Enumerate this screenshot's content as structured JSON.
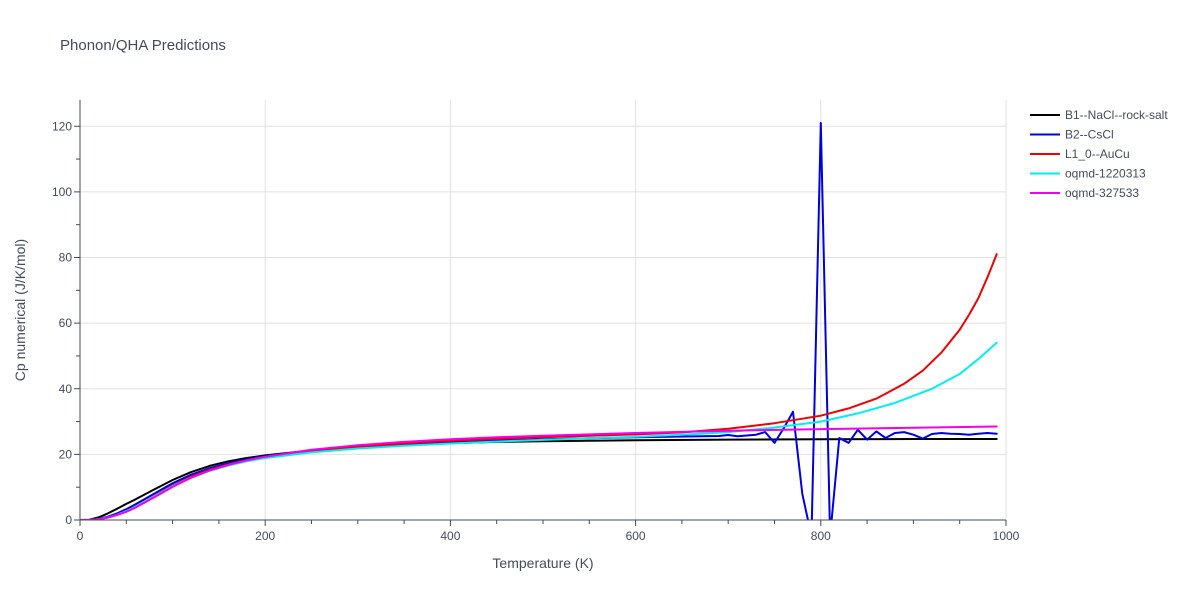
{
  "chart_data": {
    "type": "line",
    "title": "Phonon/QHA Predictions",
    "xlabel": "Temperature (K)",
    "ylabel": "Cp numerical (J/K/mol)",
    "xlim": [
      0,
      1000
    ],
    "ylim": [
      0,
      128
    ],
    "xticks": [
      0,
      200,
      400,
      600,
      800,
      1000
    ],
    "yticks": [
      0,
      20,
      40,
      60,
      80,
      100,
      120
    ],
    "grid": true,
    "legend_position": "top-right",
    "series": [
      {
        "name": "B1--NaCl--rock-salt",
        "color": "#000000",
        "x": [
          0,
          10,
          20,
          30,
          40,
          50,
          60,
          80,
          100,
          120,
          140,
          160,
          180,
          200,
          250,
          300,
          350,
          400,
          450,
          500,
          600,
          700,
          800,
          900,
          990
        ],
        "y": [
          0,
          0.1,
          0.8,
          2.0,
          3.4,
          4.9,
          6.3,
          9.3,
          12.2,
          14.6,
          16.5,
          17.9,
          18.9,
          19.7,
          21.2,
          22.2,
          22.9,
          23.4,
          23.8,
          24.0,
          24.3,
          24.5,
          24.6,
          24.7,
          24.7
        ]
      },
      {
        "name": "B2--CsCl",
        "color": "#0000dd",
        "x": [
          0,
          10,
          20,
          30,
          40,
          50,
          60,
          80,
          100,
          120,
          140,
          160,
          180,
          200,
          250,
          300,
          350,
          400,
          450,
          500,
          600,
          690,
          700,
          710,
          730,
          740,
          750,
          760,
          770,
          780,
          790,
          800,
          810,
          820,
          830,
          840,
          850,
          860,
          870,
          880,
          890,
          900,
          910,
          920,
          930,
          940,
          950,
          960,
          970,
          980,
          990
        ],
        "y": [
          0,
          0,
          0.3,
          1.0,
          2.0,
          3.3,
          4.8,
          8.0,
          11.2,
          13.8,
          15.8,
          17.3,
          18.5,
          19.4,
          21.0,
          22.2,
          23.0,
          23.7,
          24.2,
          24.6,
          25.2,
          25.6,
          25.9,
          25.5,
          26.0,
          26.8,
          23.5,
          28.0,
          33.0,
          8.0,
          -5.0,
          121.0,
          -5.0,
          25.0,
          23.5,
          27.5,
          24.5,
          27.0,
          25.0,
          26.5,
          26.8,
          26.0,
          24.8,
          26.2,
          26.5,
          26.3,
          26.2,
          26.0,
          26.3,
          26.5,
          26.3
        ]
      },
      {
        "name": "L1_0--AuCu",
        "color": "#ee0000",
        "x": [
          0,
          10,
          20,
          30,
          40,
          50,
          60,
          80,
          100,
          120,
          140,
          160,
          180,
          200,
          250,
          300,
          350,
          400,
          450,
          500,
          550,
          600,
          650,
          700,
          750,
          800,
          830,
          860,
          890,
          910,
          930,
          950,
          960,
          970,
          980,
          990
        ],
        "y": [
          0,
          0,
          0.2,
          0.8,
          1.6,
          2.7,
          4.0,
          7.2,
          10.5,
          13.2,
          15.3,
          16.9,
          18.2,
          19.2,
          21.0,
          22.3,
          23.3,
          24.1,
          24.7,
          25.2,
          25.7,
          26.1,
          26.7,
          27.8,
          29.5,
          31.8,
          34.0,
          37.0,
          41.5,
          45.5,
          51.0,
          58.0,
          62.5,
          67.5,
          74.0,
          81.0
        ]
      },
      {
        "name": "oqmd-1220313",
        "color": "#00eeee",
        "x": [
          0,
          10,
          20,
          30,
          40,
          50,
          60,
          80,
          100,
          120,
          140,
          160,
          180,
          200,
          250,
          300,
          350,
          400,
          450,
          500,
          550,
          600,
          650,
          700,
          750,
          800,
          840,
          880,
          920,
          950,
          970,
          990
        ],
        "y": [
          0,
          0,
          0.2,
          0.8,
          1.6,
          2.7,
          4.0,
          7.1,
          10.3,
          12.9,
          15.0,
          16.6,
          17.9,
          18.9,
          20.6,
          21.8,
          22.6,
          23.3,
          23.9,
          24.4,
          24.9,
          25.4,
          26.0,
          26.8,
          28.2,
          30.0,
          32.5,
          35.7,
          40.0,
          44.5,
          49.0,
          54.0
        ]
      },
      {
        "name": "oqmd-327533",
        "color": "#ee00ee",
        "x": [
          0,
          10,
          20,
          30,
          40,
          50,
          60,
          80,
          100,
          120,
          140,
          160,
          180,
          200,
          250,
          300,
          350,
          400,
          450,
          500,
          600,
          700,
          800,
          900,
          990
        ],
        "y": [
          0,
          0,
          0.2,
          0.7,
          1.5,
          2.5,
          3.8,
          6.9,
          10.1,
          12.9,
          15.1,
          16.8,
          18.2,
          19.3,
          21.4,
          22.8,
          23.8,
          24.6,
          25.2,
          25.7,
          26.5,
          27.2,
          27.7,
          28.1,
          28.5
        ]
      }
    ]
  }
}
